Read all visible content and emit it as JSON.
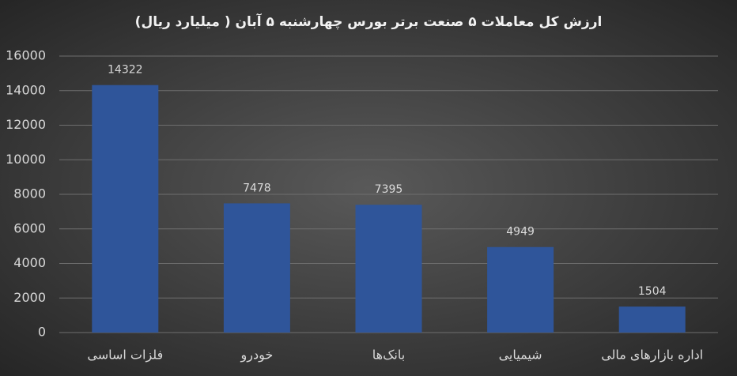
{
  "chart_data": {
    "type": "bar",
    "title": "ارزش کل معاملات ۵ صنعت برتر بورس چهارشنبه ۵ آبان ( میلیارد ریال)",
    "categories": [
      "فلزات اساسی",
      "خودرو",
      "بانک‌ها",
      "شیمیایی",
      "اداره بازارهای مالی"
    ],
    "values": [
      14322,
      7478,
      7395,
      4949,
      1504
    ],
    "color": "#2f559a",
    "ylim": [
      0,
      16000
    ],
    "yticks": [
      0,
      2000,
      4000,
      6000,
      8000,
      10000,
      12000,
      14000,
      16000
    ],
    "grid": true
  }
}
